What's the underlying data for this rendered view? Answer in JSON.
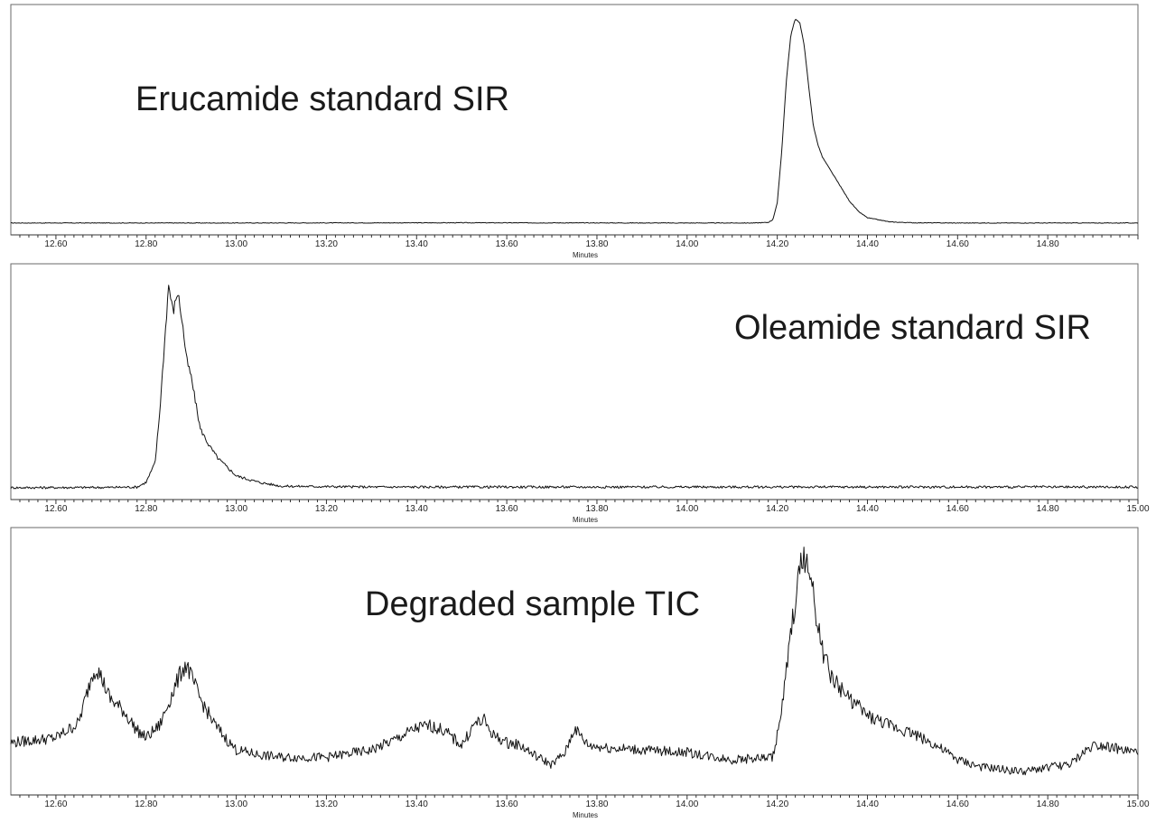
{
  "chart_data": [
    {
      "type": "line",
      "title": "Erucamide standard SIR",
      "xlabel": "Minutes",
      "ylabel": "",
      "xlim": [
        12.5,
        15.0
      ],
      "ylim": [
        0,
        100
      ],
      "grid": false,
      "x_ticks": [
        12.6,
        12.8,
        13.0,
        13.2,
        13.4,
        13.6,
        13.8,
        14.0,
        14.2,
        14.4,
        14.6,
        14.8
      ],
      "tick_labels": [
        "12.60",
        "12.80",
        "13.00",
        "13.20",
        "13.40",
        "13.60",
        "13.80",
        "14.00",
        "14.20",
        "14.40",
        "14.60",
        "14.80"
      ],
      "series": [
        {
          "x": [
            12.5,
            12.8,
            13.0,
            13.5,
            14.0,
            14.15,
            14.18,
            14.19,
            14.2,
            14.21,
            14.22,
            14.23,
            14.24,
            14.25,
            14.26,
            14.27,
            14.28,
            14.29,
            14.3,
            14.32,
            14.34,
            14.36,
            14.38,
            14.4,
            14.45,
            14.5,
            14.6,
            14.8,
            15.0
          ],
          "y": [
            0.5,
            0.5,
            0.5,
            0.6,
            0.5,
            0.5,
            0.8,
            2,
            10,
            35,
            68,
            90,
            98,
            96,
            85,
            65,
            47,
            38,
            32,
            25,
            18,
            11,
            6,
            3,
            1,
            0.6,
            0.5,
            0.5,
            0.5
          ]
        }
      ]
    },
    {
      "type": "line",
      "title": "Oleamide standard SIR",
      "xlabel": "Minutes",
      "ylabel": "",
      "xlim": [
        12.5,
        15.0
      ],
      "ylim": [
        0,
        100
      ],
      "grid": false,
      "x_ticks": [
        12.6,
        12.8,
        13.0,
        13.2,
        13.4,
        13.6,
        13.8,
        14.0,
        14.2,
        14.4,
        14.6,
        14.8,
        15.0
      ],
      "tick_labels": [
        "12.60",
        "12.80",
        "13.00",
        "13.20",
        "13.40",
        "13.60",
        "13.80",
        "14.00",
        "14.20",
        "14.40",
        "14.60",
        "14.80",
        "15.00"
      ],
      "series": [
        {
          "x": [
            12.5,
            12.7,
            12.78,
            12.8,
            12.82,
            12.83,
            12.84,
            12.85,
            12.86,
            12.87,
            12.88,
            12.89,
            12.9,
            12.91,
            12.92,
            12.94,
            12.96,
            12.98,
            13.0,
            13.05,
            13.1,
            13.3,
            13.6,
            14.0,
            14.5,
            15.0
          ],
          "y": [
            0.5,
            0.6,
            0.8,
            3,
            12,
            35,
            65,
            95,
            82,
            92,
            78,
            60,
            52,
            40,
            28,
            20,
            14,
            10,
            6,
            3,
            1.2,
            0.8,
            0.8,
            0.8,
            0.8,
            0.8
          ]
        }
      ]
    },
    {
      "type": "line",
      "title": "Degraded sample TIC",
      "xlabel": "Minutes",
      "ylabel": "",
      "xlim": [
        12.5,
        15.0
      ],
      "ylim": [
        0,
        100
      ],
      "grid": false,
      "x_ticks": [
        12.6,
        12.8,
        13.0,
        13.2,
        13.4,
        13.6,
        13.8,
        14.0,
        14.2,
        14.4,
        14.6,
        14.8,
        15.0
      ],
      "tick_labels": [
        "12.60",
        "12.80",
        "13.00",
        "13.20",
        "13.40",
        "13.60",
        "13.80",
        "14.00",
        "14.20",
        "14.40",
        "14.60",
        "14.80",
        "15.00"
      ],
      "series": [
        {
          "x": [
            12.5,
            12.6,
            12.65,
            12.67,
            12.68,
            12.69,
            12.7,
            12.72,
            12.75,
            12.78,
            12.8,
            12.83,
            12.86,
            12.88,
            12.89,
            12.9,
            12.92,
            12.95,
            12.98,
            13.0,
            13.05,
            13.1,
            13.2,
            13.3,
            13.35,
            13.4,
            13.43,
            13.46,
            13.5,
            13.53,
            13.55,
            13.57,
            13.6,
            13.63,
            13.66,
            13.7,
            13.73,
            13.75,
            13.78,
            13.82,
            13.9,
            14.0,
            14.1,
            14.19,
            14.21,
            14.23,
            14.25,
            14.26,
            14.27,
            14.28,
            14.3,
            14.32,
            14.35,
            14.4,
            14.45,
            14.5,
            14.55,
            14.6,
            14.65,
            14.7,
            14.75,
            14.8,
            14.85,
            14.88,
            14.9,
            14.93,
            14.96,
            15.0
          ],
          "y": [
            17,
            19,
            25,
            38,
            45,
            48,
            44,
            35,
            30,
            22,
            19,
            24,
            38,
            47,
            49,
            44,
            35,
            25,
            18,
            14,
            12,
            11,
            11,
            14,
            18,
            23,
            24,
            22,
            16,
            25,
            26,
            20,
            17,
            16,
            12,
            8,
            13,
            23,
            16,
            15,
            14,
            13,
            10,
            11,
            30,
            62,
            88,
            94,
            88,
            77,
            55,
            44,
            37,
            28,
            24,
            21,
            16,
            10,
            7,
            6,
            5,
            7,
            8,
            13,
            16,
            16,
            14,
            13
          ]
        }
      ]
    }
  ]
}
